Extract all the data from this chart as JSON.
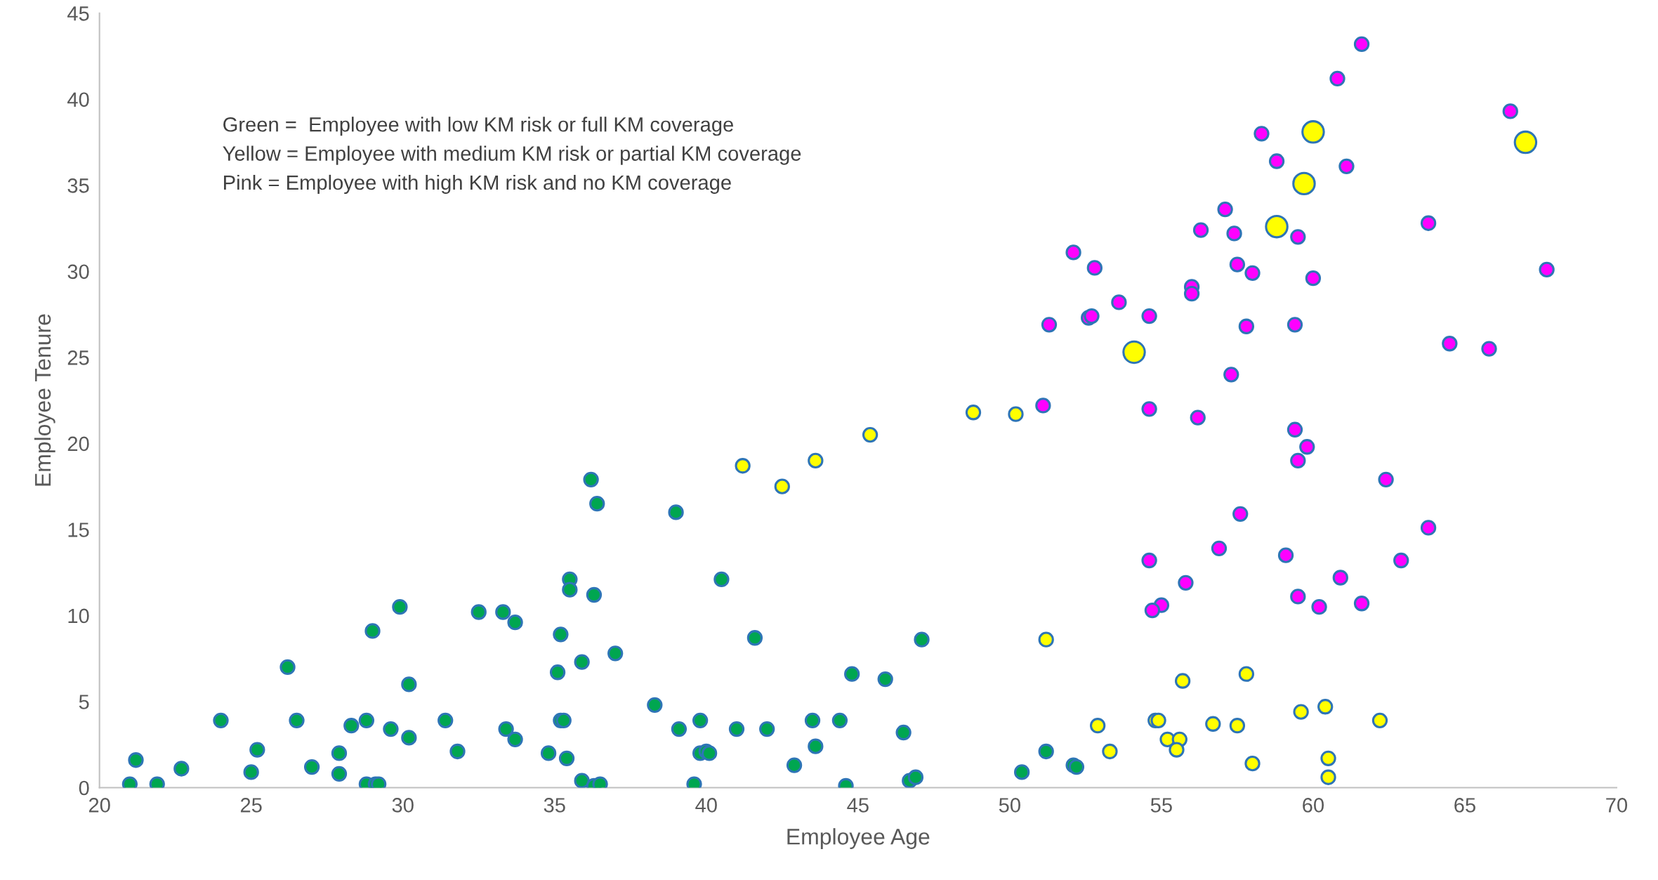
{
  "chart_data": {
    "type": "bubble",
    "xlabel": "Employee Age",
    "ylabel": "Employee Tenure",
    "xlim": [
      20,
      70
    ],
    "xticks": [
      20,
      25,
      30,
      35,
      40,
      45,
      50,
      55,
      60,
      65,
      70
    ],
    "ylim": [
      0,
      45
    ],
    "yticks": [
      0,
      5,
      10,
      15,
      20,
      25,
      30,
      35,
      40,
      45
    ],
    "grid": false,
    "legend": false,
    "annotations": [
      "Green =  Employee with low KM risk or full KM coverage",
      "Yellow = Employee with medium KM risk or partial KM coverage",
      "Pink = Employee with high KM risk and no KM coverage"
    ],
    "series": [
      {
        "color": "#00a650",
        "x": [
          21.0,
          21.2,
          21.9,
          22.7,
          24.0,
          25.0,
          25.2,
          26.2,
          26.5,
          27.0,
          27.9,
          27.9,
          28.3,
          28.8,
          28.8,
          29.0,
          29.1,
          29.2,
          29.6,
          29.9,
          30.2,
          30.2,
          31.4,
          31.8,
          32.5,
          33.3,
          33.4,
          33.7,
          33.7,
          34.8,
          35.1,
          35.2,
          35.2,
          35.3,
          35.4,
          35.5,
          35.5,
          35.9,
          35.9,
          36.2,
          36.4,
          36.3,
          36.3,
          36.5,
          37.0,
          38.3,
          39.0,
          39.1,
          39.6,
          39.8,
          39.8,
          40.0,
          40.1,
          40.5,
          41.0,
          41.6,
          42.0,
          42.9,
          43.5,
          43.6,
          44.4,
          44.6,
          44.8,
          45.9,
          46.5,
          46.7,
          46.9,
          47.1,
          50.4,
          51.2,
          52.1,
          52.2
        ],
        "values": [
          0.2,
          1.6,
          0.2,
          1.1,
          3.9,
          0.9,
          2.2,
          7.0,
          3.9,
          1.2,
          2.0,
          0.8,
          3.6,
          3.9,
          0.2,
          9.1,
          0.2,
          0.2,
          3.4,
          10.5,
          6.0,
          2.9,
          3.9,
          2.1,
          10.2,
          10.2,
          3.4,
          9.6,
          2.8,
          2.0,
          6.7,
          8.9,
          3.9,
          3.9,
          1.7,
          12.1,
          11.5,
          7.3,
          0.4,
          17.9,
          16.5,
          11.2,
          0.1,
          0.2,
          7.8,
          4.8,
          16.0,
          3.4,
          0.2,
          3.9,
          2.0,
          2.1,
          2.0,
          12.1,
          3.4,
          8.7,
          3.4,
          1.3,
          3.9,
          2.4,
          3.9,
          0.1,
          6.6,
          6.3,
          3.2,
          0.4,
          0.6,
          8.6,
          0.9,
          2.1,
          1.3,
          1.2
        ],
        "sizes": [
          0.4,
          0.4,
          0.4,
          0.4,
          0.4,
          0.4,
          0.4,
          0.4,
          0.4,
          0.4,
          0.4,
          0.4,
          0.4,
          0.4,
          0.4,
          0.4,
          0.4,
          0.4,
          0.4,
          0.4,
          0.4,
          0.4,
          0.4,
          0.4,
          0.4,
          0.4,
          0.4,
          0.4,
          0.4,
          0.4,
          0.4,
          0.4,
          0.4,
          0.4,
          0.4,
          0.4,
          0.4,
          0.4,
          0.4,
          0.4,
          0.4,
          0.4,
          0.4,
          0.4,
          0.4,
          0.4,
          0.4,
          0.4,
          0.4,
          0.4,
          0.4,
          0.4,
          0.4,
          0.4,
          0.4,
          0.4,
          0.4,
          0.4,
          0.4,
          0.4,
          0.4,
          0.4,
          0.4,
          0.4,
          0.4,
          0.4,
          0.4,
          0.4,
          0.4,
          0.4,
          0.4,
          0.4
        ]
      },
      {
        "color": "#ffff00",
        "x": [
          41.2,
          42.5,
          43.6,
          45.4,
          48.8,
          50.2,
          51.2,
          52.9,
          53.3,
          54.8,
          54.9,
          55.2,
          55.6,
          55.5,
          55.7,
          56.7,
          57.5,
          57.8,
          58.0,
          59.6,
          60.4,
          60.5,
          60.5,
          62.2,
          54.1,
          58.8,
          59.7,
          60.0,
          67.0
        ],
        "values": [
          18.7,
          17.5,
          19.0,
          20.5,
          21.8,
          21.7,
          8.6,
          3.6,
          2.1,
          3.9,
          3.9,
          2.8,
          2.8,
          2.2,
          6.2,
          3.7,
          3.6,
          6.6,
          1.4,
          4.4,
          4.7,
          1.7,
          0.6,
          3.9,
          25.3,
          32.6,
          35.1,
          38.1,
          37.5
        ],
        "sizes": [
          0.4,
          0.4,
          0.4,
          0.4,
          0.4,
          0.4,
          0.4,
          0.4,
          0.4,
          0.4,
          0.4,
          0.4,
          0.4,
          0.4,
          0.4,
          0.4,
          0.4,
          0.4,
          0.4,
          0.4,
          0.4,
          0.4,
          0.4,
          0.4,
          1,
          1,
          1,
          1,
          1
        ]
      },
      {
        "color": "#ff00ff",
        "x": [
          61.6,
          60.8,
          58.3,
          58.8,
          61.1,
          66.5,
          57.1,
          56.3,
          57.4,
          59.5,
          63.8,
          52.1,
          52.8,
          57.5,
          58.0,
          60.0,
          67.7,
          56.0,
          56.0,
          53.6,
          52.6,
          52.7,
          54.6,
          51.3,
          57.8,
          59.4,
          64.5,
          65.8,
          57.3,
          51.1,
          54.6,
          56.2,
          59.4,
          59.8,
          59.5,
          62.4,
          57.6,
          63.8,
          56.9,
          59.1,
          54.6,
          62.9,
          60.9,
          55.8,
          59.5,
          60.2,
          61.6,
          55.0,
          54.7
        ],
        "values": [
          43.2,
          41.2,
          38.0,
          36.4,
          36.1,
          39.3,
          33.6,
          32.4,
          32.2,
          32.0,
          32.8,
          31.1,
          30.2,
          30.4,
          29.9,
          29.6,
          30.1,
          29.1,
          28.7,
          28.2,
          27.3,
          27.4,
          27.4,
          26.9,
          26.8,
          26.9,
          25.8,
          25.5,
          24.0,
          22.2,
          22.0,
          21.5,
          20.8,
          19.8,
          19.0,
          17.9,
          15.9,
          15.1,
          13.9,
          13.5,
          13.2,
          13.2,
          12.2,
          11.9,
          11.1,
          10.5,
          10.7,
          10.6,
          10.3
        ],
        "sizes": [
          0.4,
          0.4,
          0.4,
          0.4,
          0.4,
          0.4,
          0.4,
          0.4,
          0.4,
          0.4,
          0.4,
          0.4,
          0.4,
          0.4,
          0.4,
          0.4,
          0.4,
          0.4,
          0.4,
          0.4,
          0.4,
          0.4,
          0.4,
          0.4,
          0.4,
          0.4,
          0.4,
          0.4,
          0.4,
          0.4,
          0.4,
          0.4,
          0.4,
          0.4,
          0.4,
          0.4,
          0.4,
          0.4,
          0.4,
          0.4,
          0.4,
          0.4,
          0.4,
          0.4,
          0.4,
          0.4,
          0.4,
          0.4,
          0.4
        ]
      }
    ]
  }
}
